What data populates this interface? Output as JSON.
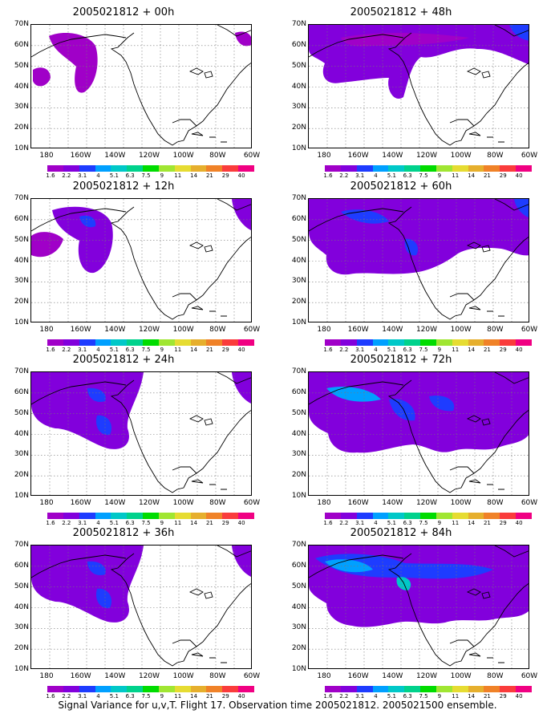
{
  "panels": [
    {
      "title": "2005021812 + 00h",
      "col": 0,
      "row": 0,
      "level": 1
    },
    {
      "title": "2005021812 + 48h",
      "col": 1,
      "row": 0,
      "level": 4
    },
    {
      "title": "2005021812 + 12h",
      "col": 0,
      "row": 1,
      "level": 2
    },
    {
      "title": "2005021812 + 60h",
      "col": 1,
      "row": 1,
      "level": 5
    },
    {
      "title": "2005021812 + 24h",
      "col": 0,
      "row": 2,
      "level": 3
    },
    {
      "title": "2005021812 + 72h",
      "col": 1,
      "row": 2,
      "level": 6
    },
    {
      "title": "2005021812 + 36h",
      "col": 0,
      "row": 3,
      "level": 3
    },
    {
      "title": "2005021812 + 84h",
      "col": 1,
      "row": 3,
      "level": 7
    }
  ],
  "y_ticks": [
    "70N",
    "60N",
    "50N",
    "40N",
    "30N",
    "20N",
    "10N"
  ],
  "x_ticks": [
    "180",
    "160W",
    "140W",
    "120W",
    "100W",
    "80W",
    "60W"
  ],
  "colorbar": {
    "labels": [
      "1.6",
      "2.2",
      "3.1",
      "4",
      "5.1",
      "6.3",
      "7.5",
      "9",
      "11",
      "14",
      "21",
      "29",
      "40"
    ],
    "colors": [
      "#a000c8",
      "#8200dc",
      "#1e3cff",
      "#00a0ff",
      "#00c8c8",
      "#00d28c",
      "#00dc00",
      "#a0e632",
      "#e6dc32",
      "#e6af2d",
      "#f08228",
      "#fa3c3c",
      "#f00082"
    ]
  },
  "caption": "Signal Variance for u,v,T. Flight 17. Observation time 2005021812. 2005021500 ensemble."
}
